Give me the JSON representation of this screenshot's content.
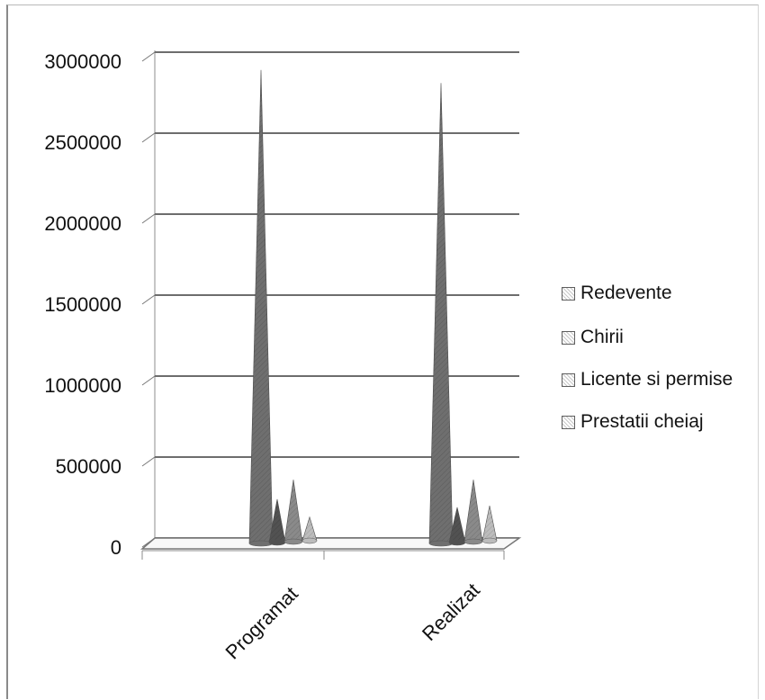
{
  "chart_data": {
    "type": "3d-cone-column",
    "title": "",
    "xlabel": "",
    "ylabel": "",
    "categories": [
      "Programat",
      "Realizat"
    ],
    "series": [
      {
        "name": "Redevente",
        "values": [
          2890000,
          2810000
        ],
        "color": "#6f6f6f"
      },
      {
        "name": "Chirii",
        "values": [
          240000,
          190000
        ],
        "color": "#525252"
      },
      {
        "name": "Licente si permise",
        "values": [
          360000,
          360000
        ],
        "color": "#8a8a8a"
      },
      {
        "name": "Prestatii cheiaj",
        "values": [
          130000,
          200000
        ],
        "color": "#bcbcbc"
      }
    ],
    "ylim": [
      0,
      3000000
    ],
    "yticks": [
      "0",
      "500000",
      "1000000",
      "1500000",
      "2000000",
      "2500000",
      "3000000"
    ],
    "grid": true,
    "legend_position": "right"
  }
}
